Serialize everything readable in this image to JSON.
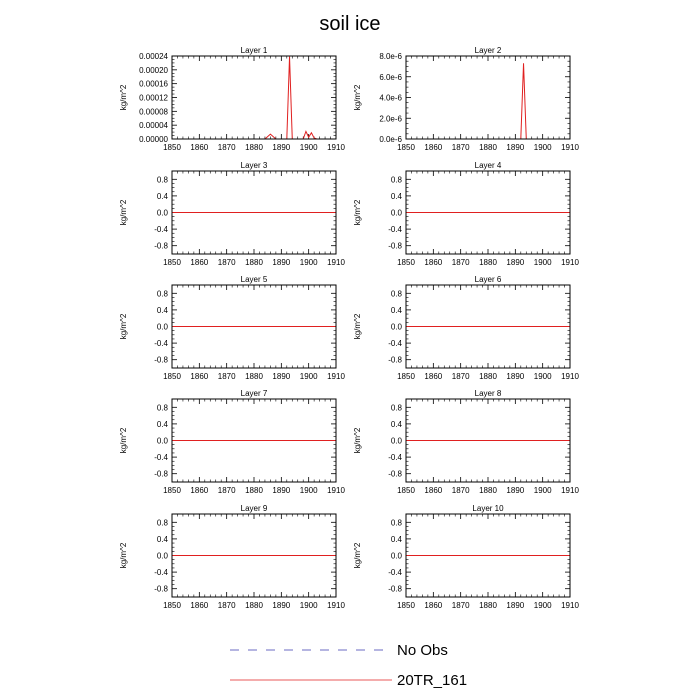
{
  "figure": {
    "title": "soil ice",
    "legend": [
      {
        "label": "No Obs",
        "color": "#3b3bb0",
        "style": "dashed"
      },
      {
        "label": "20TR_161",
        "color": "#e02020",
        "style": "solid"
      }
    ]
  },
  "chart_data": [
    {
      "type": "line",
      "title": "Layer 1",
      "ylabel": "kg/m^2",
      "xlim": [
        1850,
        1910
      ],
      "ylim": [
        0,
        0.00024
      ],
      "xticks": [
        1850,
        1860,
        1870,
        1880,
        1890,
        1900,
        1910
      ],
      "yticks": [
        0,
        4e-05,
        8e-05,
        0.00012,
        0.00016,
        0.0002,
        0.00024
      ],
      "ytick_labels": [
        "0.00000",
        "0.00004",
        "0.00008",
        "0.00012",
        "0.00016",
        "0.00020",
        "0.00024"
      ],
      "series": [
        {
          "name": "20TR_161",
          "color": "#e02020",
          "x": [
            1850,
            1884,
            1886,
            1888,
            1892,
            1893,
            1894,
            1898,
            1899,
            1900,
            1901,
            1902,
            1903,
            1910
          ],
          "y": [
            0,
            0,
            1.4e-05,
            0,
            0,
            0.000238,
            0,
            0,
            2.2e-05,
            5e-06,
            1.8e-05,
            3e-06,
            0,
            0
          ]
        }
      ]
    },
    {
      "type": "line",
      "title": "Layer 2",
      "ylabel": "kg/m^2",
      "xlim": [
        1850,
        1910
      ],
      "ylim": [
        0,
        8e-06
      ],
      "xticks": [
        1850,
        1860,
        1870,
        1880,
        1890,
        1900,
        1910
      ],
      "yticks": [
        0,
        2e-06,
        4e-06,
        6e-06,
        8e-06
      ],
      "ytick_labels": [
        "0.0e-6",
        "2.0e-6",
        "4.0e-6",
        "6.0e-6",
        "8.0e-6"
      ],
      "series": [
        {
          "name": "20TR_161",
          "color": "#e02020",
          "x": [
            1850,
            1892,
            1893,
            1894,
            1910
          ],
          "y": [
            0,
            0,
            7.3e-06,
            0,
            0
          ]
        }
      ]
    },
    {
      "type": "line",
      "title": "Layer 3",
      "ylabel": "kg/m^2",
      "xlim": [
        1850,
        1910
      ],
      "ylim": [
        -1,
        1
      ],
      "xticks": [
        1850,
        1860,
        1870,
        1880,
        1890,
        1900,
        1910
      ],
      "yticks": [
        -0.8,
        -0.4,
        0,
        0.4,
        0.8
      ],
      "ytick_labels": [
        "-0.8",
        "-0.4",
        "0.0",
        "0.4",
        "0.8"
      ],
      "series": [
        {
          "name": "20TR_161",
          "color": "#e02020",
          "x": [
            1850,
            1910
          ],
          "y": [
            0,
            0
          ]
        }
      ]
    },
    {
      "type": "line",
      "title": "Layer 4",
      "ylabel": "kg/m^2",
      "xlim": [
        1850,
        1910
      ],
      "ylim": [
        -1,
        1
      ],
      "xticks": [
        1850,
        1860,
        1870,
        1880,
        1890,
        1900,
        1910
      ],
      "yticks": [
        -0.8,
        -0.4,
        0,
        0.4,
        0.8
      ],
      "ytick_labels": [
        "-0.8",
        "-0.4",
        "0.0",
        "0.4",
        "0.8"
      ],
      "series": [
        {
          "name": "20TR_161",
          "color": "#e02020",
          "x": [
            1850,
            1910
          ],
          "y": [
            0,
            0
          ]
        }
      ]
    },
    {
      "type": "line",
      "title": "Layer 5",
      "ylabel": "kg/m^2",
      "xlim": [
        1850,
        1910
      ],
      "ylim": [
        -1,
        1
      ],
      "xticks": [
        1850,
        1860,
        1870,
        1880,
        1890,
        1900,
        1910
      ],
      "yticks": [
        -0.8,
        -0.4,
        0,
        0.4,
        0.8
      ],
      "ytick_labels": [
        "-0.8",
        "-0.4",
        "0.0",
        "0.4",
        "0.8"
      ],
      "series": [
        {
          "name": "20TR_161",
          "color": "#e02020",
          "x": [
            1850,
            1910
          ],
          "y": [
            0,
            0
          ]
        }
      ]
    },
    {
      "type": "line",
      "title": "Layer 6",
      "ylabel": "kg/m^2",
      "xlim": [
        1850,
        1910
      ],
      "ylim": [
        -1,
        1
      ],
      "xticks": [
        1850,
        1860,
        1870,
        1880,
        1890,
        1900,
        1910
      ],
      "yticks": [
        -0.8,
        -0.4,
        0,
        0.4,
        0.8
      ],
      "ytick_labels": [
        "-0.8",
        "-0.4",
        "0.0",
        "0.4",
        "0.8"
      ],
      "series": [
        {
          "name": "20TR_161",
          "color": "#e02020",
          "x": [
            1850,
            1910
          ],
          "y": [
            0,
            0
          ]
        }
      ]
    },
    {
      "type": "line",
      "title": "Layer 7",
      "ylabel": "kg/m^2",
      "xlim": [
        1850,
        1910
      ],
      "ylim": [
        -1,
        1
      ],
      "xticks": [
        1850,
        1860,
        1870,
        1880,
        1890,
        1900,
        1910
      ],
      "yticks": [
        -0.8,
        -0.4,
        0,
        0.4,
        0.8
      ],
      "ytick_labels": [
        "-0.8",
        "-0.4",
        "0.0",
        "0.4",
        "0.8"
      ],
      "series": [
        {
          "name": "20TR_161",
          "color": "#e02020",
          "x": [
            1850,
            1910
          ],
          "y": [
            0,
            0
          ]
        }
      ]
    },
    {
      "type": "line",
      "title": "Layer 8",
      "ylabel": "kg/m^2",
      "xlim": [
        1850,
        1910
      ],
      "ylim": [
        -1,
        1
      ],
      "xticks": [
        1850,
        1860,
        1870,
        1880,
        1890,
        1900,
        1910
      ],
      "yticks": [
        -0.8,
        -0.4,
        0,
        0.4,
        0.8
      ],
      "ytick_labels": [
        "-0.8",
        "-0.4",
        "0.0",
        "0.4",
        "0.8"
      ],
      "series": [
        {
          "name": "20TR_161",
          "color": "#e02020",
          "x": [
            1850,
            1910
          ],
          "y": [
            0,
            0
          ]
        }
      ]
    },
    {
      "type": "line",
      "title": "Layer 9",
      "ylabel": "kg/m^2",
      "xlim": [
        1850,
        1910
      ],
      "ylim": [
        -1,
        1
      ],
      "xticks": [
        1850,
        1860,
        1870,
        1880,
        1890,
        1900,
        1910
      ],
      "yticks": [
        -0.8,
        -0.4,
        0,
        0.4,
        0.8
      ],
      "ytick_labels": [
        "-0.8",
        "-0.4",
        "0.0",
        "0.4",
        "0.8"
      ],
      "series": [
        {
          "name": "20TR_161",
          "color": "#e02020",
          "x": [
            1850,
            1910
          ],
          "y": [
            0,
            0
          ]
        }
      ]
    },
    {
      "type": "line",
      "title": "Layer 10",
      "ylabel": "kg/m^2",
      "xlim": [
        1850,
        1910
      ],
      "ylim": [
        -1,
        1
      ],
      "xticks": [
        1850,
        1860,
        1870,
        1880,
        1890,
        1900,
        1910
      ],
      "yticks": [
        -0.8,
        -0.4,
        0,
        0.4,
        0.8
      ],
      "ytick_labels": [
        "-0.8",
        "-0.4",
        "0.0",
        "0.4",
        "0.8"
      ],
      "series": [
        {
          "name": "20TR_161",
          "color": "#e02020",
          "x": [
            1850,
            1910
          ],
          "y": [
            0,
            0
          ]
        }
      ]
    }
  ]
}
